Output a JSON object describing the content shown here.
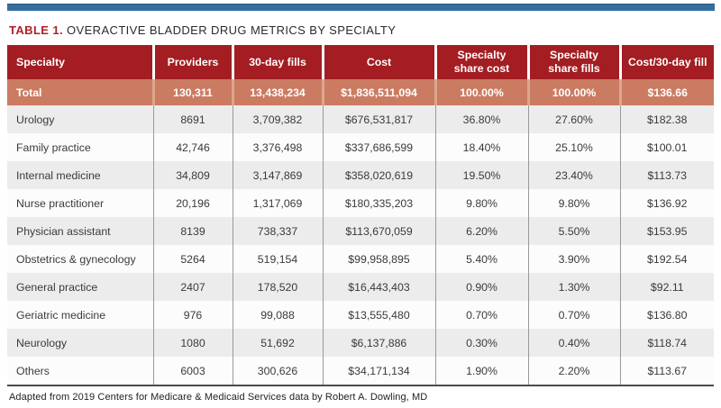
{
  "colors": {
    "accent_blue": "#336e9f",
    "header_red": "#a31d22",
    "total_salmon": "#cb7b62",
    "caption_red": "#b01f24",
    "row_alt_gray": "#ececec"
  },
  "chart_data": {
    "type": "table",
    "caption_label": "TABLE 1.",
    "title": "OVERACTIVE BLADDER DRUG METRICS BY SPECIALTY",
    "columns": [
      "Specialty",
      "Providers",
      "30-day fills",
      "Cost",
      "Specialty share cost",
      "Specialty share fills",
      "Cost/30-day fill"
    ],
    "total_row": [
      "Total",
      "130,311",
      "13,438,234",
      "$1,836,511,094",
      "100.00%",
      "100.00%",
      "$136.66"
    ],
    "rows": [
      [
        "Urology",
        "8691",
        "3,709,382",
        "$676,531,817",
        "36.80%",
        "27.60%",
        "$182.38"
      ],
      [
        "Family practice",
        "42,746",
        "3,376,498",
        "$337,686,599",
        "18.40%",
        "25.10%",
        "$100.01"
      ],
      [
        "Internal medicine",
        "34,809",
        "3,147,869",
        "$358,020,619",
        "19.50%",
        "23.40%",
        "$113.73"
      ],
      [
        "Nurse practitioner",
        "20,196",
        "1,317,069",
        "$180,335,203",
        "9.80%",
        "9.80%",
        "$136.92"
      ],
      [
        "Physician assistant",
        "8139",
        "738,337",
        "$113,670,059",
        "6.20%",
        "5.50%",
        "$153.95"
      ],
      [
        "Obstetrics & gynecology",
        "5264",
        "519,154",
        "$99,958,895",
        "5.40%",
        "3.90%",
        "$192.54"
      ],
      [
        "General practice",
        "2407",
        "178,520",
        "$16,443,403",
        "0.90%",
        "1.30%",
        "$92.11"
      ],
      [
        "Geriatric medicine",
        "976",
        "99,088",
        "$13,555,480",
        "0.70%",
        "0.70%",
        "$136.80"
      ],
      [
        "Neurology",
        "1080",
        "51,692",
        "$6,137,886",
        "0.30%",
        "0.40%",
        "$118.74"
      ],
      [
        "Others",
        "6003",
        "300,626",
        "$34,171,134",
        "1.90%",
        "2.20%",
        "$113.67"
      ]
    ],
    "footnote": "Adapted from 2019 Centers for Medicare & Medicaid Services data by Robert A. Dowling, MD"
  }
}
